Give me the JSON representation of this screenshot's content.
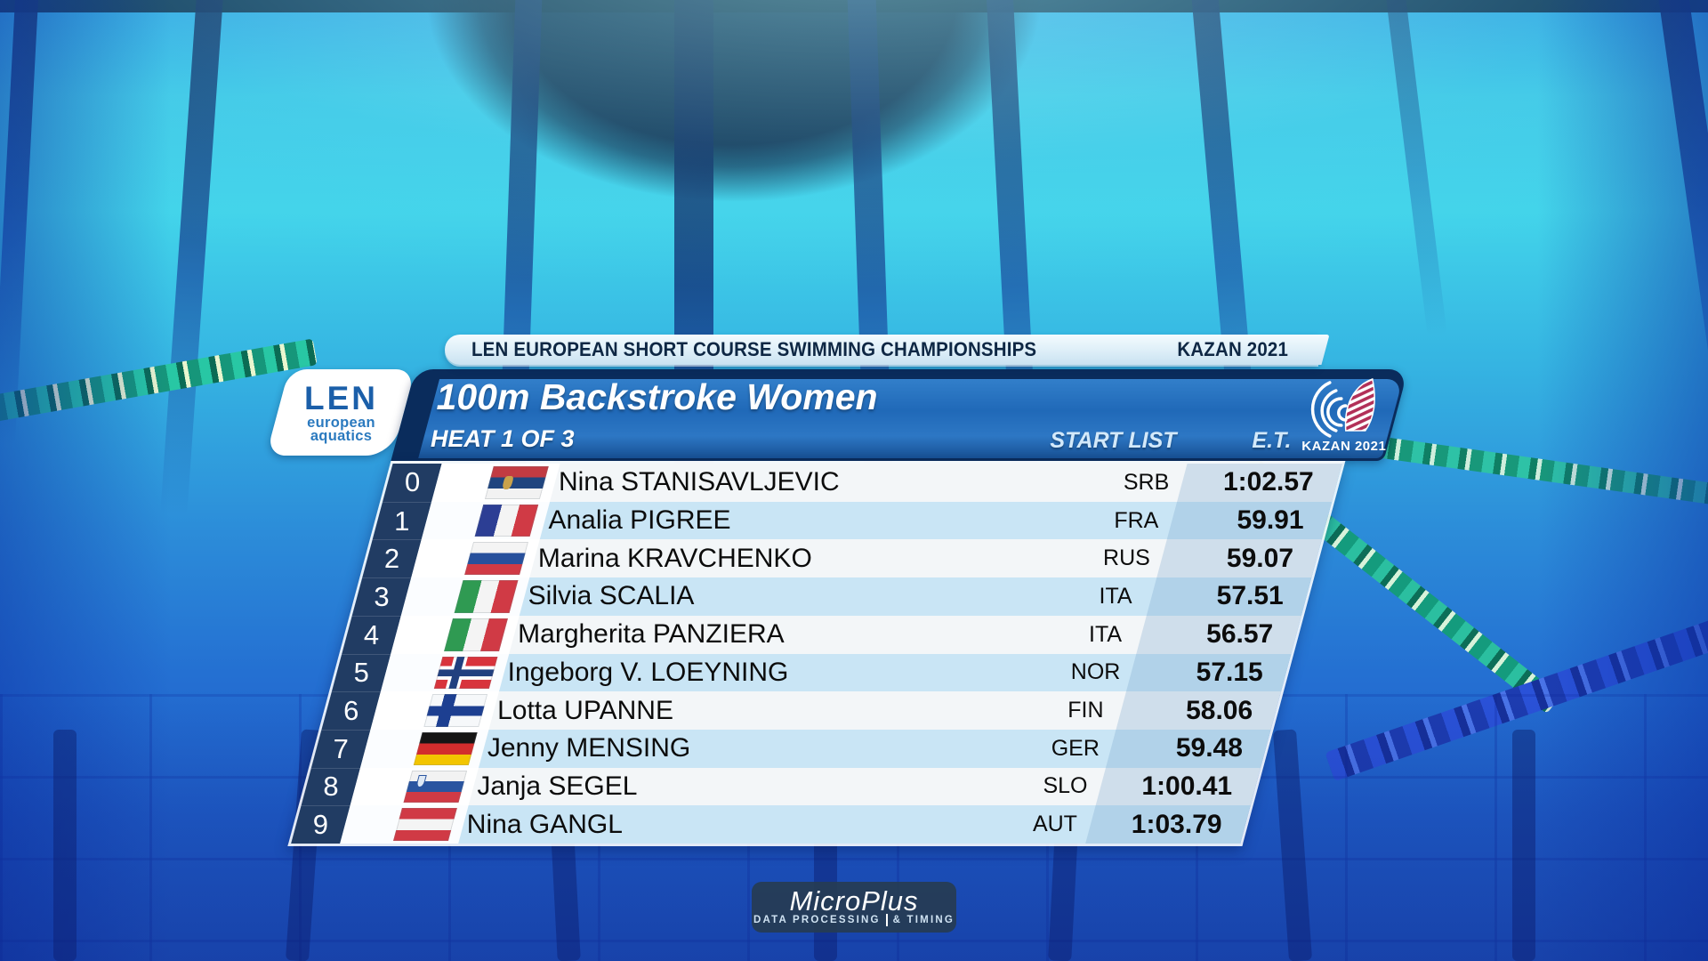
{
  "event_header": {
    "championship": "LEN EUROPEAN SHORT COURSE SWIMMING CHAMPIONSHIPS",
    "location": "KAZAN 2021"
  },
  "title_bar": {
    "event_title": "100m Backstroke Women",
    "heat": "HEAT 1 OF 3",
    "start_list_label": "START LIST",
    "et_label": "E.T."
  },
  "len_logo": {
    "acronym": "LEN",
    "line1": "european",
    "line2": "aquatics"
  },
  "kazan_logo": {
    "text": "KAZAN 2021"
  },
  "table": {
    "columns": [
      "lane",
      "flag",
      "name",
      "country",
      "entry_time"
    ],
    "rows": [
      {
        "lane": "0",
        "flag": "srb",
        "name": "Nina STANISAVLJEVIC",
        "country": "SRB",
        "time": "1:02.57"
      },
      {
        "lane": "1",
        "flag": "fra",
        "name": "Analia PIGREE",
        "country": "FRA",
        "time": "59.91"
      },
      {
        "lane": "2",
        "flag": "rus",
        "name": "Marina KRAVCHENKO",
        "country": "RUS",
        "time": "59.07"
      },
      {
        "lane": "3",
        "flag": "ita",
        "name": "Silvia SCALIA",
        "country": "ITA",
        "time": "57.51"
      },
      {
        "lane": "4",
        "flag": "ita",
        "name": "Margherita PANZIERA",
        "country": "ITA",
        "time": "56.57"
      },
      {
        "lane": "5",
        "flag": "nor",
        "name": "Ingeborg V. LOEYNING",
        "country": "NOR",
        "time": "57.15"
      },
      {
        "lane": "6",
        "flag": "fin",
        "name": "Lotta UPANNE",
        "country": "FIN",
        "time": "58.06"
      },
      {
        "lane": "7",
        "flag": "ger",
        "name": "Jenny MENSING",
        "country": "GER",
        "time": "59.48"
      },
      {
        "lane": "8",
        "flag": "slo",
        "name": "Janja SEGEL",
        "country": "SLO",
        "time": "1:00.41"
      },
      {
        "lane": "9",
        "flag": "aut",
        "name": "Nina GANGL",
        "country": "AUT",
        "time": "1:03.79"
      }
    ]
  },
  "footer_logo": {
    "brand": "MicroPlus",
    "tagline_left": "DATA PROCESSING",
    "tagline_right": "& TIMING"
  },
  "colors": {
    "header_blue": "#2069b8",
    "header_navy": "#0a2c5c",
    "lane_navy": "#213c63",
    "row_white": "#f3f6f8",
    "row_blue": "#c9e5f5",
    "banner_pale": "#ddeef8",
    "banner_text_navy": "#0e2744",
    "accent_red": "#b23058",
    "pool_cyan": "#42d4ea",
    "pool_deep_blue": "#1e56c2"
  }
}
